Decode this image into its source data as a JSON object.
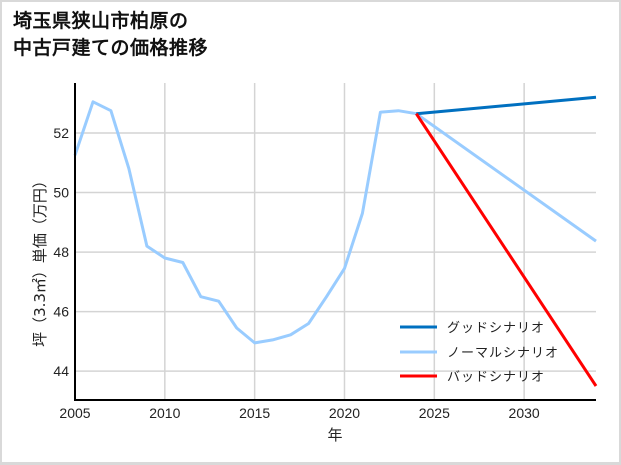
{
  "title": {
    "line1": "埼玉県狭山市柏原の",
    "line2": "中古戸建ての価格推移"
  },
  "axes": {
    "xlabel": "年",
    "ylabel": "坪（3.3㎡）単価（万円）"
  },
  "legend": {
    "good": "グッドシナリオ",
    "normal": "ノーマルシナリオ",
    "bad": "バッドシナリオ"
  },
  "colors": {
    "good": "#0070c0",
    "normal": "#99ccff",
    "bad": "#ff0000",
    "grid": "#d4d4d4",
    "axis": "#000000"
  },
  "chart_data": {
    "type": "line",
    "title": "埼玉県狭山市柏原の中古戸建ての価格推移",
    "xlabel": "年",
    "ylabel": "坪（3.3㎡）単価（万円）",
    "xlim": [
      2005,
      2034
    ],
    "ylim": [
      43.03,
      53.68
    ],
    "xticks": [
      2005,
      2010,
      2015,
      2020,
      2025,
      2030
    ],
    "yticks": [
      44,
      46,
      48,
      50,
      52
    ],
    "grid": true,
    "legend_position": "lower right",
    "series": [
      {
        "name": "ノーマルシナリオ",
        "key": "normal",
        "x": [
          2005,
          2006,
          2007,
          2008,
          2009,
          2010,
          2011,
          2012,
          2013,
          2014,
          2015,
          2016,
          2017,
          2018,
          2019,
          2020,
          2021,
          2022,
          2023,
          2024,
          2034
        ],
        "values": [
          51.25,
          53.05,
          52.75,
          50.8,
          48.2,
          47.8,
          47.65,
          46.5,
          46.35,
          45.45,
          44.95,
          45.05,
          45.22,
          45.6,
          46.5,
          47.45,
          49.3,
          52.7,
          52.75,
          52.65,
          48.37
        ]
      },
      {
        "name": "グッドシナリオ",
        "key": "good",
        "x": [
          2024,
          2034
        ],
        "values": [
          52.65,
          53.2
        ]
      },
      {
        "name": "バッドシナリオ",
        "key": "bad",
        "x": [
          2024,
          2034
        ],
        "values": [
          52.65,
          43.5
        ]
      }
    ]
  }
}
